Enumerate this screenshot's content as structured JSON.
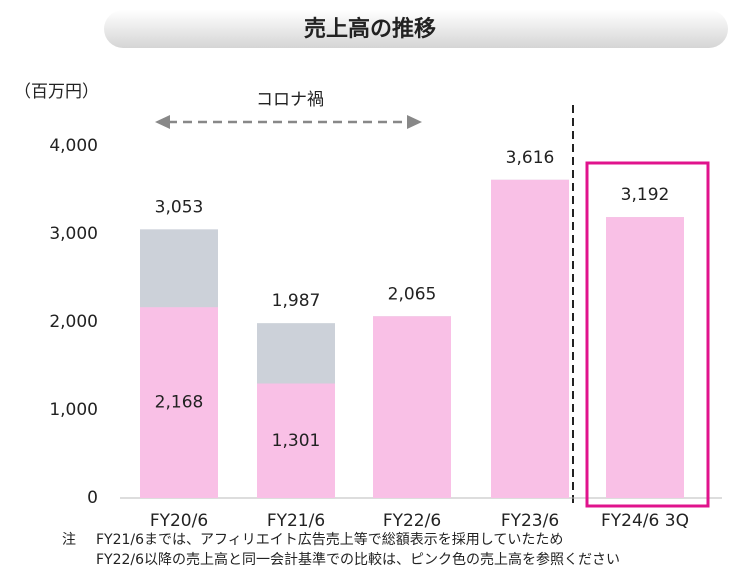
{
  "chart_data": {
    "type": "bar",
    "overlay": true,
    "title": "売上高の推移",
    "unit_label": "（百万円）",
    "annotation": "コロナ禍",
    "categories": [
      "FY20/6",
      "FY21/6",
      "FY22/6",
      "FY23/6",
      "FY24/6 3Q"
    ],
    "series": [
      {
        "color": "#ccd1d9",
        "values": [
          3053,
          1987,
          2065,
          3616,
          3192
        ],
        "value_labels": [
          "3,053",
          "1,987",
          "2,065",
          "3,616",
          "3,192"
        ]
      },
      {
        "color": "#f9c0e6",
        "values": [
          2168,
          1301,
          2065,
          3616,
          3192
        ],
        "value_labels": [
          "2,168",
          "1,301",
          null,
          null,
          null
        ]
      }
    ],
    "highlight_color": "#e0138c",
    "ylim": [
      0,
      4000
    ],
    "yticks": [
      0,
      {
        "value": 1000,
        "label": "1,000"
      },
      {
        "value": 2000,
        "label": "2,000"
      },
      {
        "value": 3000,
        "label": "3,000"
      },
      {
        "value": 4000,
        "label": "4,000"
      }
    ],
    "notes": {
      "marker": "注",
      "lines": [
        "FY21/6までは、アフィリエイト広告売上等で総額表示を採用していたため",
        "FY22/6以降の売上高と同一会計基準での比較は、ピンク色の売上高を参照ください"
      ]
    }
  }
}
